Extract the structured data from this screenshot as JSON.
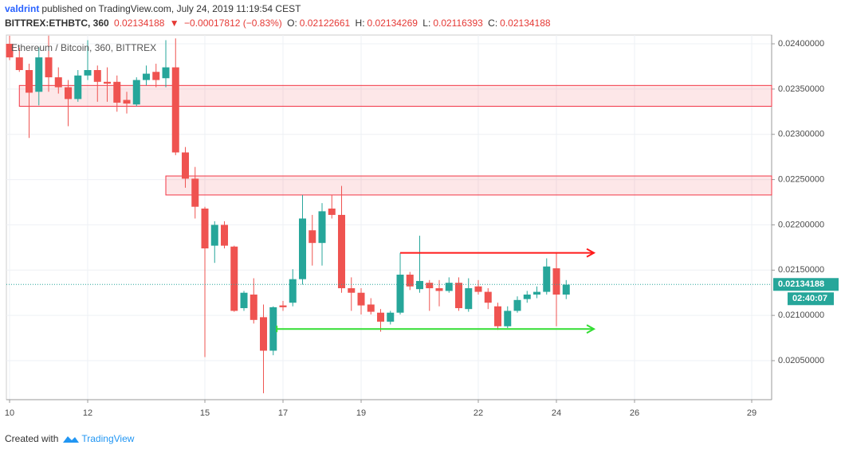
{
  "header": {
    "author": "valdrint",
    "published": "published on TradingView.com, July 24, 2019 11:19:54 CEST",
    "symbol": "BITTREX:ETHBTC, 360",
    "price": "0.02134188",
    "change_arrow": "▼",
    "change": "−0.00017812 (−0.83%)",
    "o_label": "O:",
    "o": "0.02122661",
    "h_label": "H:",
    "h": "0.02134269",
    "l_label": "L:",
    "l": "0.02116393",
    "c_label": "C:",
    "c": "0.02134188"
  },
  "footer": {
    "created": "Created with",
    "brand": "TradingView"
  },
  "chart_data": {
    "type": "candlestick",
    "title": "Ethereum / Bitcoin, 360, BITTREX",
    "up_color": "#26a69a",
    "down_color": "#ef5350",
    "x": [
      10,
      10.25,
      10.5,
      10.75,
      11,
      11.25,
      11.5,
      11.75,
      12,
      12.25,
      12.5,
      12.75,
      13,
      13.25,
      13.5,
      13.75,
      14,
      14.25,
      14.5,
      14.75,
      15,
      15.25,
      15.5,
      15.75,
      16,
      16.25,
      16.5,
      16.75,
      17,
      17.25,
      17.5,
      17.75,
      18,
      18.25,
      18.5,
      18.75,
      19,
      19.25,
      19.5,
      19.75,
      20,
      20.25,
      20.5,
      20.75,
      21,
      21.25,
      21.5,
      21.75,
      22,
      22.25,
      22.5,
      22.75,
      23,
      23.25,
      23.5,
      23.75,
      24,
      24.25
    ],
    "open": [
      0.024,
      0.02385,
      0.02371,
      0.02347,
      0.02385,
      0.02363,
      0.02352,
      0.02339,
      0.02365,
      0.02371,
      0.02358,
      0.02358,
      0.02338,
      0.02333,
      0.0236,
      0.02369,
      0.02362,
      0.02374,
      0.0228,
      0.02251,
      0.02218,
      0.02177,
      0.022,
      0.02176,
      0.02108,
      0.02123,
      0.02098,
      0.02061,
      0.02111,
      0.02114,
      0.0214,
      0.02194,
      0.0218,
      0.02218,
      0.02211,
      0.0213,
      0.02125,
      0.02112,
      0.02103,
      0.02093,
      0.02103,
      0.02145,
      0.02129,
      0.02136,
      0.0213,
      0.02127,
      0.02136,
      0.02107,
      0.02132,
      0.02126,
      0.0211,
      0.02088,
      0.02105,
      0.02118,
      0.02123,
      0.02126,
      0.02152,
      0.02123
    ],
    "high": [
      0.02409,
      0.02396,
      0.02378,
      0.02396,
      0.02409,
      0.02374,
      0.0236,
      0.02371,
      0.02404,
      0.02376,
      0.02374,
      0.02365,
      0.02347,
      0.02363,
      0.02376,
      0.02378,
      0.02404,
      0.02406,
      0.02286,
      0.02264,
      0.0222,
      0.02204,
      0.02204,
      0.02177,
      0.02127,
      0.02141,
      0.02112,
      0.0211,
      0.02116,
      0.02151,
      0.02233,
      0.02211,
      0.02224,
      0.02233,
      0.02243,
      0.02142,
      0.0213,
      0.02119,
      0.02107,
      0.02105,
      0.02169,
      0.02148,
      0.02188,
      0.02139,
      0.02139,
      0.02142,
      0.02142,
      0.02141,
      0.02139,
      0.0213,
      0.02114,
      0.0211,
      0.02121,
      0.02127,
      0.02132,
      0.02163,
      0.02169,
      0.02139
    ],
    "low": [
      0.02382,
      0.02369,
      0.02296,
      0.02332,
      0.02347,
      0.02345,
      0.02309,
      0.02336,
      0.0236,
      0.02336,
      0.02336,
      0.02325,
      0.02323,
      0.02331,
      0.02354,
      0.02352,
      0.02352,
      0.02277,
      0.02241,
      0.02207,
      0.02054,
      0.02158,
      0.02174,
      0.02104,
      0.02105,
      0.02091,
      0.02014,
      0.02056,
      0.02105,
      0.0211,
      0.02134,
      0.02155,
      0.02155,
      0.02207,
      0.02125,
      0.02105,
      0.02101,
      0.02101,
      0.02082,
      0.0209,
      0.02101,
      0.02128,
      0.02125,
      0.02105,
      0.0211,
      0.02125,
      0.02105,
      0.02104,
      0.02123,
      0.02107,
      0.02084,
      0.02086,
      0.02103,
      0.02114,
      0.02119,
      0.02123,
      0.02088,
      0.02118
    ],
    "close": [
      0.02385,
      0.02371,
      0.02346,
      0.02385,
      0.02363,
      0.02352,
      0.02339,
      0.02365,
      0.02371,
      0.02358,
      0.02356,
      0.02335,
      0.02334,
      0.0236,
      0.02367,
      0.0236,
      0.02374,
      0.0228,
      0.02251,
      0.0222,
      0.02174,
      0.022,
      0.02177,
      0.02105,
      0.02125,
      0.02095,
      0.02061,
      0.02109,
      0.02109,
      0.0214,
      0.02207,
      0.0218,
      0.02215,
      0.02211,
      0.0213,
      0.02125,
      0.02111,
      0.02104,
      0.02093,
      0.02103,
      0.02145,
      0.02132,
      0.02138,
      0.0213,
      0.02127,
      0.02136,
      0.02108,
      0.0213,
      0.02126,
      0.02114,
      0.02088,
      0.02105,
      0.02117,
      0.02123,
      0.02126,
      0.02154,
      0.02123,
      0.02134
    ],
    "zones": [
      {
        "from": 10.25,
        "low": 0.02331,
        "high": 0.02354,
        "color": "#f23645"
      },
      {
        "from": 14,
        "low": 0.02233,
        "high": 0.02254,
        "color": "#f23645"
      }
    ],
    "arrows": [
      {
        "from": 20,
        "to": 24.96,
        "y": 0.02169,
        "color": "#ff1a1a"
      },
      {
        "from": 16.84,
        "to": 24.96,
        "y": 0.02085,
        "color": "#33dd33"
      }
    ],
    "last_price": 0.02134188,
    "countdown": "02:40:07",
    "last_color": "#26a69a",
    "xlim": [
      9.918,
      29.51
    ],
    "xticks": [
      10,
      12,
      15,
      17,
      19,
      22,
      24,
      26,
      29
    ],
    "ylim": [
      0.020069,
      0.024097
    ],
    "yticks": [
      {
        "value": 0.0205,
        "label": "0.02050000"
      },
      {
        "value": 0.021,
        "label": "0.02100000"
      },
      {
        "value": 0.0215,
        "label": "0.02150000"
      },
      {
        "value": 0.022,
        "label": "0.02200000"
      },
      {
        "value": 0.0225,
        "label": "0.02250000"
      },
      {
        "value": 0.023,
        "label": "0.02300000"
      },
      {
        "value": 0.0235,
        "label": "0.02350000"
      },
      {
        "value": 0.024,
        "label": "0.02400000"
      }
    ],
    "grid": true
  }
}
